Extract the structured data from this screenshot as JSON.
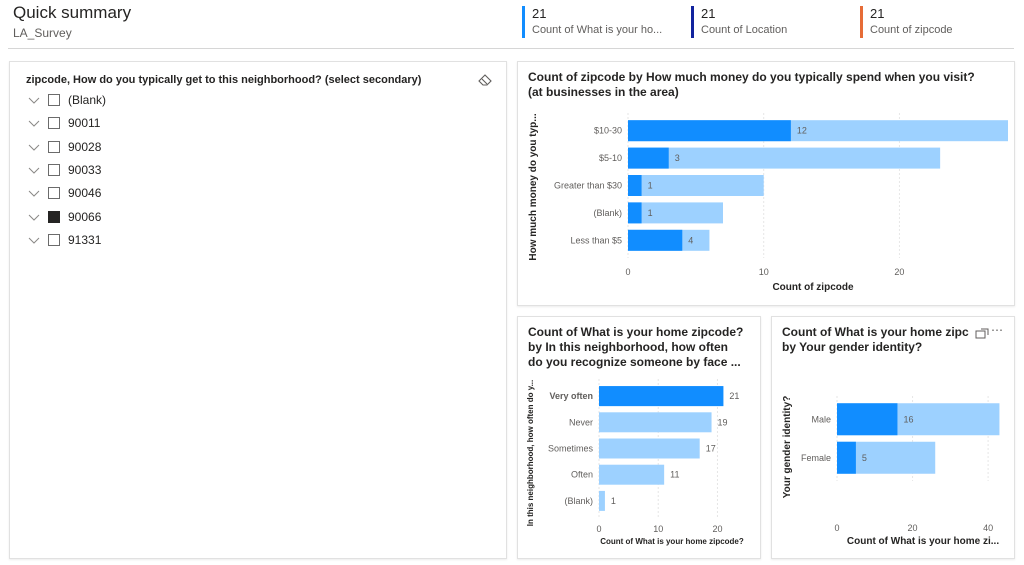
{
  "header": {
    "title": "Quick summary",
    "subtitle": "LA_Survey"
  },
  "kpis": [
    {
      "value": "21",
      "label": "Count of What is your ho...",
      "color": "#118dff"
    },
    {
      "value": "21",
      "label": "Count of Location",
      "color": "#12239e"
    },
    {
      "value": "21",
      "label": "Count of zipcode",
      "color": "#e66c37"
    }
  ],
  "slicer": {
    "title": "zipcode, How do you typically get to this neighborhood? (select secondary)",
    "items": [
      {
        "label": "(Blank)",
        "checked": false
      },
      {
        "label": "90011",
        "checked": false
      },
      {
        "label": "90028",
        "checked": false
      },
      {
        "label": "90033",
        "checked": false
      },
      {
        "label": "90046",
        "checked": false
      },
      {
        "label": "90066",
        "checked": true
      },
      {
        "label": "91331",
        "checked": false
      }
    ]
  },
  "charts": {
    "money": {
      "title_line1": "Count of zipcode by How much money do you typically spend when you visit?",
      "title_line2": "(at businesses in the area)"
    },
    "recognize": {
      "title_line1": "Count of What is your home zipcode?",
      "title_line2": "by In this neighborhood, how often",
      "title_line3": "do you recognize someone by face ..."
    },
    "gender": {
      "title_line1": "Count of What is your home zipc",
      "title_line2": "by Your gender identity?"
    }
  },
  "colors": {
    "highlight": "#118dff",
    "base": "#9dd1ff"
  },
  "chart_data": [
    {
      "type": "bar",
      "orientation": "horizontal",
      "categories": [
        "$10-30",
        "$5-10",
        "Greater than $30",
        "(Blank)",
        "Less than $5"
      ],
      "series": [
        {
          "name": "highlighted",
          "values": [
            12,
            3,
            1,
            1,
            4
          ],
          "labels": [
            "12",
            "3",
            "1",
            "1",
            "4"
          ]
        },
        {
          "name": "total",
          "values": [
            28,
            23,
            10,
            7,
            6
          ]
        }
      ],
      "xlabel": "Count of zipcode",
      "ylabel": "How much money do you typ...",
      "xlim": [
        0,
        28
      ],
      "xticks": [
        0,
        10,
        20
      ],
      "grid": true
    },
    {
      "type": "bar",
      "orientation": "horizontal",
      "categories": [
        "Very often",
        "Never",
        "Sometimes",
        "Often",
        "(Blank)"
      ],
      "series": [
        {
          "name": "highlighted",
          "values": [
            21,
            0,
            0,
            0,
            0
          ]
        },
        {
          "name": "total",
          "values": [
            21,
            19,
            17,
            11,
            1
          ],
          "labels": [
            "21",
            "19",
            "17",
            "11",
            "1"
          ]
        }
      ],
      "xlabel": "Count of What is your home zipcode?",
      "ylabel": "In this neighborhood, how often do y...",
      "xlim": [
        0,
        26
      ],
      "xticks": [
        0,
        10,
        20
      ],
      "grid": true
    },
    {
      "type": "bar",
      "orientation": "horizontal",
      "categories": [
        "Male",
        "Female"
      ],
      "series": [
        {
          "name": "highlighted",
          "values": [
            16,
            5
          ],
          "labels": [
            "16",
            "5"
          ]
        },
        {
          "name": "total",
          "values": [
            43,
            26
          ]
        }
      ],
      "xlabel": "Count of What is your home zi...",
      "ylabel": "Your gender identity?",
      "xlim": [
        0,
        45
      ],
      "xticks": [
        0,
        20,
        40
      ],
      "grid": true
    }
  ]
}
